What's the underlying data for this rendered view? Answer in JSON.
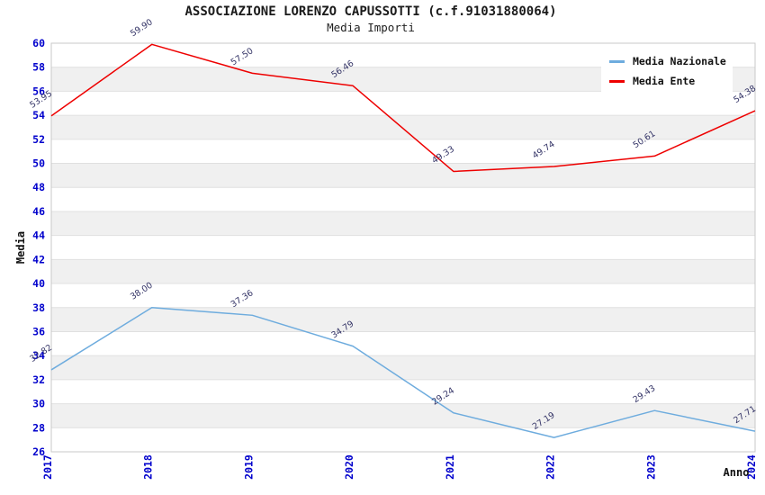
{
  "header": {
    "title": "ASSOCIAZIONE LORENZO CAPUSSOTTI (c.f.91031880064)",
    "subtitle": "Media Importi"
  },
  "chart_data": {
    "type": "line",
    "title": "ASSOCIAZIONE LORENZO CAPUSSOTTI (c.f.91031880064)",
    "subtitle": "Media Importi",
    "xlabel": "Anno",
    "ylabel": "Media",
    "x": [
      2017,
      2018,
      2019,
      2020,
      2021,
      2022,
      2023,
      2024
    ],
    "series": [
      {
        "name": "Media Nazionale",
        "color": "#6EACDE",
        "values": [
          32.82,
          38.0,
          37.36,
          34.79,
          29.24,
          27.19,
          29.43,
          27.71
        ]
      },
      {
        "name": "Media Ente",
        "color": "#EE0000",
        "values": [
          53.95,
          59.9,
          57.5,
          56.46,
          49.33,
          49.74,
          50.61,
          54.38
        ]
      }
    ],
    "ylim": [
      26,
      60
    ],
    "ytick_step": 2,
    "grid": "horizontal-bands-alternating",
    "legend_position": "top-right",
    "colors": {
      "tick_label": "#0000CC",
      "point_label": "#333366",
      "band_gray": "#F0F0F0",
      "band_white": "#FFFFFF",
      "gridline": "#E0E0E0",
      "plot_border": "#C9C9C9",
      "title_text": "#1A1A1A"
    }
  }
}
